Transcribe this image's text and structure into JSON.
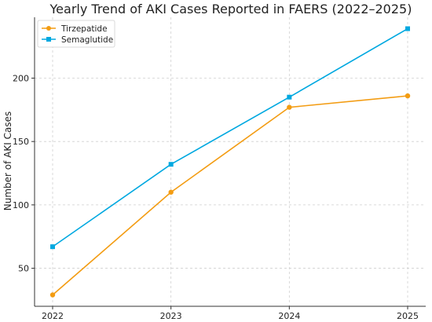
{
  "chart_data": {
    "type": "line",
    "title": "Yearly Trend of AKI Cases Reported in FAERS (2022–2025)",
    "xlabel": "",
    "ylabel": "Number of AKI Cases",
    "x": [
      "2022",
      "2023",
      "2024",
      "2025"
    ],
    "ylim": [
      20,
      248
    ],
    "yticks": [
      50,
      100,
      150,
      200
    ],
    "grid": true,
    "legend_position": "top-left",
    "series": [
      {
        "name": "Tirzepatide",
        "values": [
          29,
          110,
          177,
          186
        ],
        "color": "#f39c12",
        "marker": "circle"
      },
      {
        "name": "Semaglutide",
        "values": [
          67,
          132,
          185,
          239
        ],
        "color": "#00a8e0",
        "marker": "square"
      }
    ]
  }
}
